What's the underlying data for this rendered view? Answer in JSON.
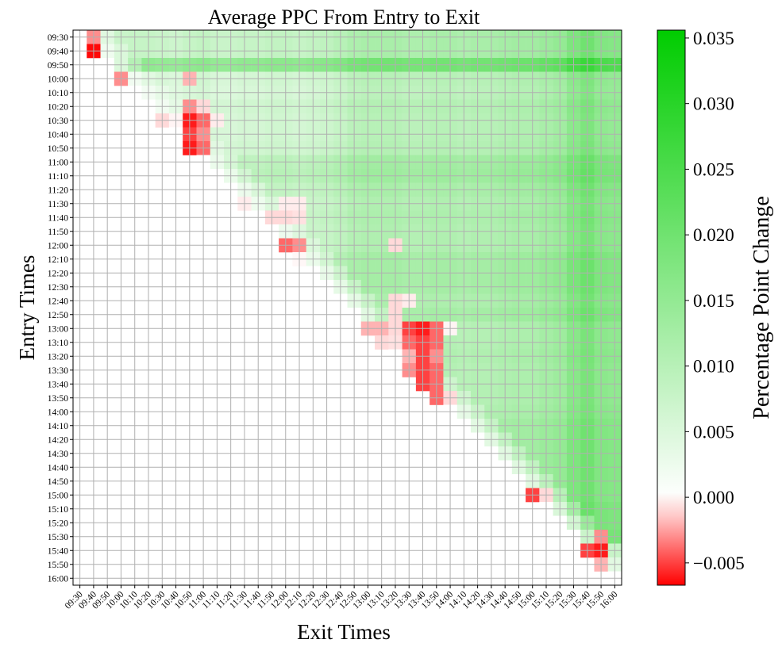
{
  "chart_data": {
    "type": "heatmap",
    "title": "Average PPC From Entry to Exit",
    "xlabel": "Exit Times",
    "ylabel": "Entry Times",
    "colorbar_label": "Percentage Point Change",
    "colorbar_range": [
      -0.0067,
      0.0356
    ],
    "colorbar_ticks": [
      "−0.005",
      "0.000",
      "0.005",
      "0.010",
      "0.015",
      "0.020",
      "0.025",
      "0.030",
      "0.035"
    ],
    "colorbar_tick_values": [
      -0.005,
      0.0,
      0.005,
      0.01,
      0.015,
      0.02,
      0.025,
      0.03,
      0.035
    ],
    "colors": {
      "negative": "#ff0000",
      "zero": "#ffffff",
      "positive": "#00cc00",
      "grid": "#b0b0b0"
    },
    "grid": true,
    "exit_times": [
      "09:30",
      "09:40",
      "09:50",
      "10:00",
      "10:10",
      "10:20",
      "10:30",
      "10:40",
      "10:50",
      "11:00",
      "11:10",
      "11:20",
      "11:30",
      "11:40",
      "11:50",
      "12:00",
      "12:10",
      "12:20",
      "12:30",
      "12:40",
      "12:50",
      "13:00",
      "13:10",
      "13:20",
      "13:30",
      "13:40",
      "13:50",
      "14:00",
      "14:10",
      "14:20",
      "14:30",
      "14:40",
      "14:50",
      "15:00",
      "15:10",
      "15:20",
      "15:30",
      "15:40",
      "15:50",
      "16:00"
    ],
    "entry_times": [
      "09:30",
      "09:40",
      "09:50",
      "10:00",
      "10:10",
      "10:20",
      "10:30",
      "10:40",
      "10:50",
      "11:00",
      "11:10",
      "11:20",
      "11:30",
      "11:40",
      "11:50",
      "12:00",
      "12:10",
      "12:20",
      "12:30",
      "12:40",
      "12:50",
      "13:00",
      "13:10",
      "13:20",
      "13:30",
      "13:40",
      "13:50",
      "14:00",
      "14:10",
      "14:20",
      "14:30",
      "14:40",
      "14:50",
      "15:00",
      "15:10",
      "15:20",
      "15:30",
      "15:40",
      "15:50",
      "16:00"
    ],
    "row_base": [
      0.008,
      0.008,
      0.023,
      0.004,
      0.003,
      0.005,
      0.004,
      0.004,
      0.005,
      0.01,
      0.011,
      0.008,
      0.006,
      0.007,
      0.006,
      0.006,
      0.009,
      0.009,
      0.009,
      0.007,
      0.009,
      0.005,
      0.005,
      0.006,
      0.005,
      0.005,
      0.005,
      0.006,
      0.008,
      0.008,
      0.008,
      0.008,
      0.008,
      0.008,
      0.01,
      0.01,
      0.012,
      -0.003,
      -0.002,
      0
    ],
    "col_base": [
      0,
      0,
      0.005,
      0.007,
      0.008,
      0.008,
      0.007,
      0.006,
      0.008,
      0.009,
      0.007,
      0.007,
      0.008,
      0.008,
      0.009,
      0.009,
      0.008,
      0.009,
      0.01,
      0.012,
      0.015,
      0.016,
      0.016,
      0.016,
      0.015,
      0.015,
      0.016,
      0.016,
      0.015,
      0.016,
      0.016,
      0.017,
      0.018,
      0.018,
      0.02,
      0.022,
      0.028,
      0.032,
      0.027,
      0.026
    ],
    "exceptions": [
      [
        0,
        1,
        -0.003
      ],
      [
        1,
        1,
        -0.0065
      ],
      [
        3,
        3,
        -0.003
      ],
      [
        3,
        8,
        -0.002
      ],
      [
        5,
        8,
        -0.003
      ],
      [
        5,
        9,
        -0.001
      ],
      [
        6,
        6,
        -0.001
      ],
      [
        6,
        7,
        -0.0003
      ],
      [
        6,
        8,
        -0.006
      ],
      [
        6,
        9,
        -0.004
      ],
      [
        6,
        10,
        -0.0005
      ],
      [
        7,
        8,
        -0.005
      ],
      [
        7,
        9,
        -0.003
      ],
      [
        8,
        8,
        -0.006
      ],
      [
        8,
        9,
        -0.004
      ],
      [
        12,
        12,
        -0.0005
      ],
      [
        12,
        15,
        -0.0005
      ],
      [
        12,
        16,
        -0.0005
      ],
      [
        13,
        12,
        -0.0008
      ],
      [
        13,
        14,
        -0.001
      ],
      [
        13,
        15,
        -0.001
      ],
      [
        13,
        16,
        -0.0008
      ],
      [
        15,
        14,
        -0.004
      ],
      [
        15,
        15,
        -0.004
      ],
      [
        15,
        16,
        -0.003
      ],
      [
        15,
        23,
        -0.001
      ],
      [
        16,
        16,
        -0.0002
      ],
      [
        19,
        18,
        -0.0005
      ],
      [
        19,
        23,
        -0.001
      ],
      [
        19,
        24,
        -0.0005
      ],
      [
        20,
        23,
        -0.001
      ],
      [
        21,
        19,
        -0.001
      ],
      [
        21,
        20,
        -0.0015
      ],
      [
        21,
        21,
        -0.002
      ],
      [
        21,
        22,
        -0.002
      ],
      [
        21,
        23,
        -0.001
      ],
      [
        21,
        24,
        -0.005
      ],
      [
        21,
        25,
        -0.006
      ],
      [
        21,
        26,
        -0.004
      ],
      [
        21,
        27,
        -0.0003
      ],
      [
        22,
        20,
        -0.0005
      ],
      [
        22,
        21,
        -0.001
      ],
      [
        22,
        22,
        -0.001
      ],
      [
        22,
        23,
        -0.0008
      ],
      [
        22,
        24,
        -0.004
      ],
      [
        22,
        25,
        -0.005
      ],
      [
        22,
        26,
        -0.004
      ],
      [
        23,
        21,
        -0.001
      ],
      [
        23,
        22,
        -0.0008
      ],
      [
        23,
        24,
        -0.002
      ],
      [
        23,
        25,
        -0.005
      ],
      [
        23,
        26,
        -0.003
      ],
      [
        24,
        24,
        -0.003
      ],
      [
        24,
        25,
        -0.005
      ],
      [
        24,
        26,
        -0.004
      ],
      [
        25,
        24,
        -0.003
      ],
      [
        25,
        25,
        -0.005
      ],
      [
        25,
        26,
        -0.004
      ],
      [
        26,
        24,
        -0.004
      ],
      [
        26,
        25,
        -0.005
      ],
      [
        26,
        26,
        -0.004
      ],
      [
        26,
        27,
        -0.001
      ],
      [
        27,
        25,
        -0.003
      ],
      [
        27,
        26,
        -0.001
      ],
      [
        33,
        33,
        -0.005
      ],
      [
        33,
        34,
        -0.001
      ],
      [
        36,
        38,
        -0.003
      ],
      [
        37,
        37,
        -0.005
      ],
      [
        37,
        38,
        -0.006
      ],
      [
        38,
        38,
        -0.002
      ]
    ]
  }
}
